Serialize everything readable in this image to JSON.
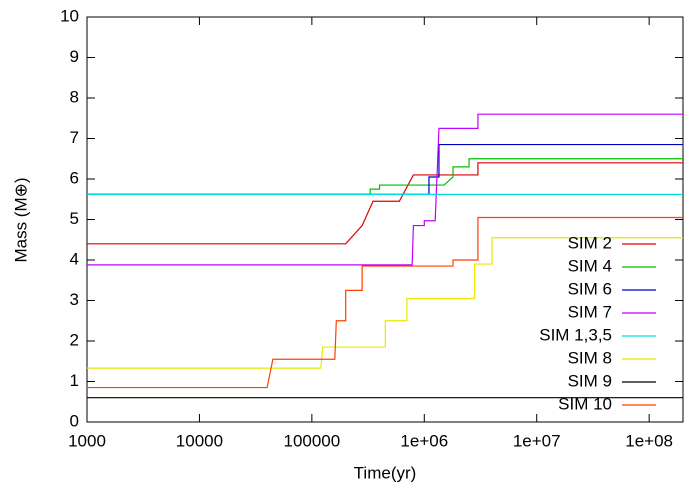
{
  "chart_data": {
    "type": "line",
    "xlabel": "Time(yr)",
    "ylabel": "Mass (M⊕)",
    "xscale": "log",
    "xlim": [
      1000,
      200000000
    ],
    "ylim": [
      0,
      10
    ],
    "xticks": [
      1000,
      10000,
      100000,
      {
        "value": 1000000,
        "label": "1e+06"
      },
      {
        "value": 10000000,
        "label": "1e+07"
      },
      {
        "value": 100000000,
        "label": "1e+08"
      }
    ],
    "yticks": [
      0,
      1,
      2,
      3,
      4,
      5,
      6,
      7,
      8,
      9,
      10
    ],
    "legend": "lower right",
    "series": [
      {
        "name": "SIM 2",
        "color": "#e00000",
        "x": [
          1000,
          200000,
          280000,
          350000,
          600000,
          800000,
          3000000,
          3000000,
          200000000
        ],
        "values": [
          4.4,
          4.4,
          4.85,
          5.45,
          5.45,
          6.1,
          6.1,
          6.4,
          6.4
        ]
      },
      {
        "name": "SIM 4",
        "color": "#00c000",
        "x": [
          1000,
          330000,
          330000,
          400000,
          400000,
          1500000,
          1800000,
          1800000,
          2500000,
          2500000,
          200000000
        ],
        "values": [
          5.62,
          5.62,
          5.75,
          5.75,
          5.85,
          5.85,
          6.05,
          6.3,
          6.3,
          6.5,
          6.5
        ]
      },
      {
        "name": "SIM 6",
        "color": "#0000c0",
        "x": [
          1000,
          1100000,
          1100000,
          1350000,
          1350000,
          200000000
        ],
        "values": [
          5.62,
          5.62,
          6.05,
          6.05,
          6.85,
          6.85
        ]
      },
      {
        "name": "SIM 7",
        "color": "#c000ff",
        "x": [
          1000,
          780000,
          800000,
          1000000,
          1000000,
          1250000,
          1350000,
          3000000,
          3000000,
          200000000
        ],
        "values": [
          3.88,
          3.88,
          4.85,
          4.85,
          4.97,
          4.97,
          7.25,
          7.25,
          7.6,
          7.6
        ]
      },
      {
        "name": "SIM 1,3,5",
        "color": "#00e0e0",
        "x": [
          1000,
          200000000
        ],
        "values": [
          5.62,
          5.62
        ]
      },
      {
        "name": "SIM 8",
        "color": "#e8e800",
        "x": [
          1000,
          120000,
          125000,
          450000,
          450000,
          700000,
          700000,
          2800000,
          2800000,
          4000000,
          4000000,
          200000000
        ],
        "values": [
          1.33,
          1.33,
          1.85,
          1.85,
          2.5,
          2.5,
          3.05,
          3.05,
          3.9,
          3.9,
          4.55,
          4.55
        ]
      },
      {
        "name": "SIM 9",
        "color": "#000000",
        "x": [
          1000,
          200000000
        ],
        "values": [
          0.6,
          0.6
        ]
      },
      {
        "name": "SIM 10",
        "color": "#ff4000",
        "x": [
          1000,
          40000,
          45000,
          160000,
          165000,
          200000,
          200000,
          280000,
          280000,
          1800000,
          1800000,
          3000000,
          3000000,
          200000000
        ],
        "values": [
          0.85,
          0.85,
          1.55,
          1.55,
          2.5,
          2.5,
          3.25,
          3.25,
          3.85,
          3.85,
          4.0,
          4.0,
          5.05,
          5.05
        ]
      }
    ]
  }
}
